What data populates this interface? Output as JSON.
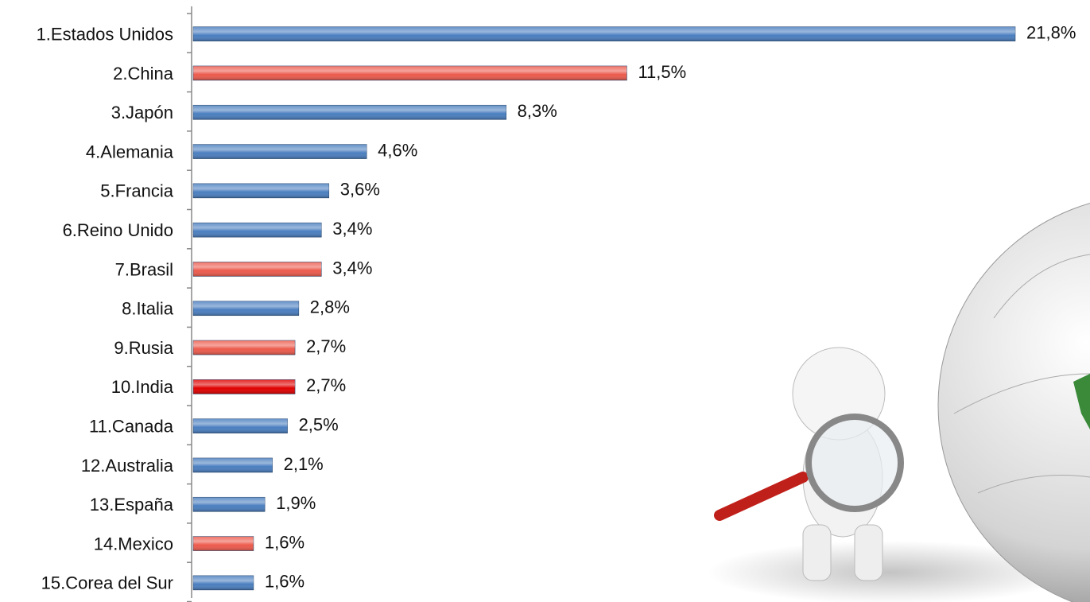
{
  "chart_data": {
    "type": "bar",
    "orientation": "horizontal",
    "categories": [
      "1.Estados Unidos",
      "2.China",
      "3.Japón",
      "4.Alemania",
      "5.Francia",
      "6.Reino Unido",
      "7.Brasil",
      "8.Italia",
      "9.Rusia",
      "10.India",
      "11.Canada",
      "12.Australia",
      "13.España",
      "14.Mexico",
      "15.Corea del Sur"
    ],
    "values": [
      21.8,
      11.5,
      8.3,
      4.6,
      3.6,
      3.4,
      3.4,
      2.8,
      2.7,
      2.7,
      2.5,
      2.1,
      1.9,
      1.6,
      1.6
    ],
    "value_labels": [
      "21,8%",
      "11,5%",
      "8,3%",
      "4,6%",
      "3,6%",
      "3,4%",
      "3,4%",
      "2,8%",
      "2,7%",
      "2,7%",
      "2,5%",
      "2,1%",
      "1,9%",
      "1,6%",
      "1,6%"
    ],
    "colors": [
      "#4a7ebf",
      "#ec5a4c",
      "#4a7ebf",
      "#4a7ebf",
      "#4a7ebf",
      "#4a7ebf",
      "#ec5a4c",
      "#4a7ebf",
      "#ec5a4c",
      "#e00000",
      "#4a7ebf",
      "#4a7ebf",
      "#4a7ebf",
      "#ec5a4c",
      "#4a7ebf"
    ]
  }
}
